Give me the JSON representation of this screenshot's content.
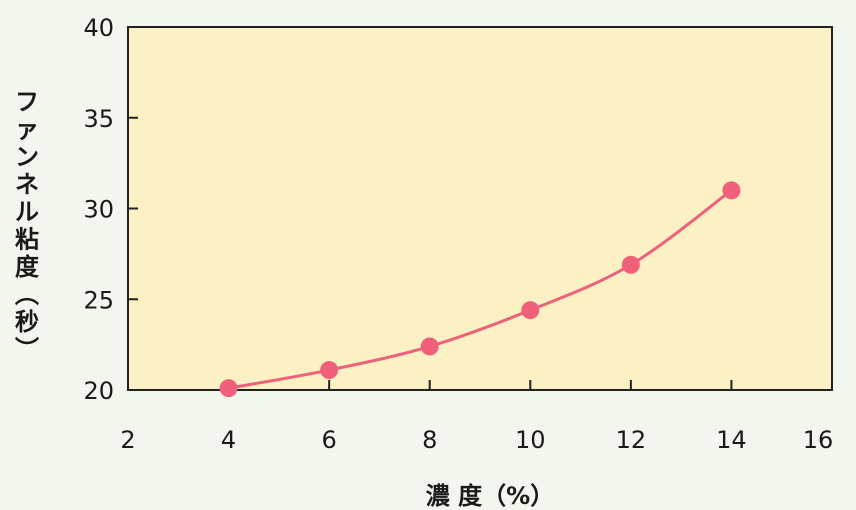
{
  "chart_data": {
    "type": "line",
    "title": "",
    "xlabel": "濃 度（%）",
    "ylabel": "ファンネル粘度（秒）",
    "xlim": [
      2,
      16
    ],
    "ylim": [
      20,
      40
    ],
    "xticks": [
      2,
      4,
      6,
      8,
      10,
      12,
      14,
      16
    ],
    "yticks": [
      20,
      25,
      30,
      35,
      40
    ],
    "grid": false,
    "legend": "none",
    "series": [
      {
        "x": [
          4,
          6,
          8,
          10,
          12,
          14
        ],
        "y": [
          20.1,
          21.1,
          22.4,
          24.4,
          26.9,
          31.0
        ],
        "color": "#f0607a"
      }
    ],
    "colors": {
      "plot_background": "#fbf1c4",
      "line": "#f0607a",
      "marker": "#f0607a",
      "axis": "#222222"
    }
  }
}
